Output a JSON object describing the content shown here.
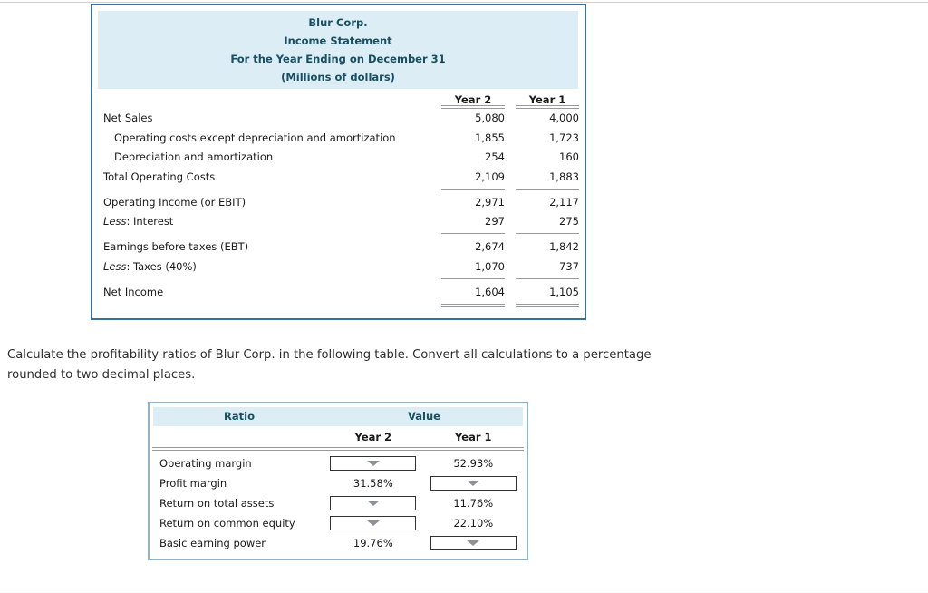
{
  "question": "Calculate the profitability ratios of Blur Corp. in the following table. Convert all calculations to a percentage rounded to two decimal places.",
  "income_statement": {
    "title_lines": [
      "Blur Corp.",
      "Income Statement",
      "For the Year Ending on December 31",
      "(Millions of dollars)"
    ],
    "col_headers": {
      "year2": "Year 2",
      "year1": "Year 1"
    },
    "rows": [
      {
        "label": "Net Sales",
        "year2": "5,080",
        "year1": "4,000"
      },
      {
        "label": "Operating costs except depreciation and amortization",
        "year2": "1,855",
        "year1": "1,723"
      },
      {
        "label": "Depreciation and amortization",
        "year2": "254",
        "year1": "160"
      },
      {
        "label": "Total Operating Costs",
        "year2": "2,109",
        "year1": "1,883"
      },
      {
        "label": "Operating Income (or EBIT)",
        "year2": "2,971",
        "year1": "2,117"
      },
      {
        "prefix": "Less",
        "label": ": Interest",
        "year2": "297",
        "year1": "275"
      },
      {
        "label": "Earnings before taxes (EBT)",
        "year2": "2,674",
        "year1": "1,842"
      },
      {
        "prefix": "Less",
        "label": ": Taxes (40%)",
        "year2": "1,070",
        "year1": "737"
      },
      {
        "label": "Net Income",
        "year2": "1,604",
        "year1": "1,105"
      }
    ]
  },
  "ratio_table": {
    "col_headers": {
      "ratio": "Ratio",
      "value": "Value",
      "year2": "Year 2",
      "year1": "Year 1"
    },
    "rows": [
      {
        "label": "Operating margin",
        "year2": "",
        "year1": "52.93%"
      },
      {
        "label": "Profit margin",
        "year2": "31.58%",
        "year1": ""
      },
      {
        "label": "Return on total assets",
        "year2": "",
        "year1": "11.76%"
      },
      {
        "label": "Return on common equity",
        "year2": "",
        "year1": "22.10%"
      },
      {
        "label": "Basic earning power",
        "year2": "19.76%",
        "year1": ""
      }
    ]
  },
  "colors": {
    "heading_text": "#174f63",
    "heading_bg": "#ddedf5",
    "income_border": "#38719a",
    "ratio_border": "#8fb3c9",
    "rule_gray": "#999999"
  }
}
